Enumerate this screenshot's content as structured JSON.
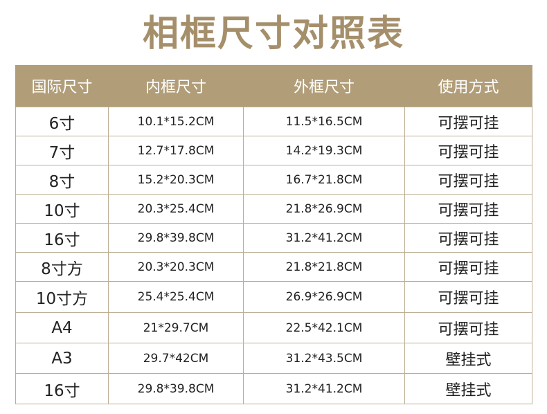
{
  "title": "相框尺寸对照表",
  "headers": [
    "国际尺寸",
    "内框尺寸",
    "外框尺寸",
    "使用方式"
  ],
  "rows": [
    [
      "6寸",
      "10.1*15.2CM",
      "11.5*16.5CM",
      "可摆可挂"
    ],
    [
      "7寸",
      "12.7*17.8CM",
      "14.2*19.3CM",
      "可摆可挂"
    ],
    [
      "8寸",
      "15.2*20.3CM",
      "16.7*21.8CM",
      "可摆可挂"
    ],
    [
      "10寸",
      "20.3*25.4CM",
      "21.8*26.9CM",
      "可摆可挂"
    ],
    [
      "16寸",
      "29.8*39.8CM",
      "31.2*41.2CM",
      "可摆可挂"
    ],
    [
      "8寸方",
      "20.3*20.3CM",
      "21.8*21.8CM",
      "可摆可挂"
    ],
    [
      "10寸方",
      "25.4*25.4CM",
      "26.9*26.9CM",
      "可摆可挂"
    ],
    [
      "A4",
      "21*29.7CM",
      "22.5*42.1CM",
      "可摆可挂"
    ],
    [
      "A3",
      "29.7*42CM",
      "31.2*43.5CM",
      "壁挂式"
    ],
    [
      "16寸",
      "29.8*39.8CM",
      "31.2*41.2CM",
      "壁挂式"
    ]
  ],
  "colors": {
    "title": "#a58f6b",
    "header_bg": "#b19e79",
    "header_text": "#ffffff",
    "border": "#bcae91",
    "cell_text": "#222222"
  }
}
